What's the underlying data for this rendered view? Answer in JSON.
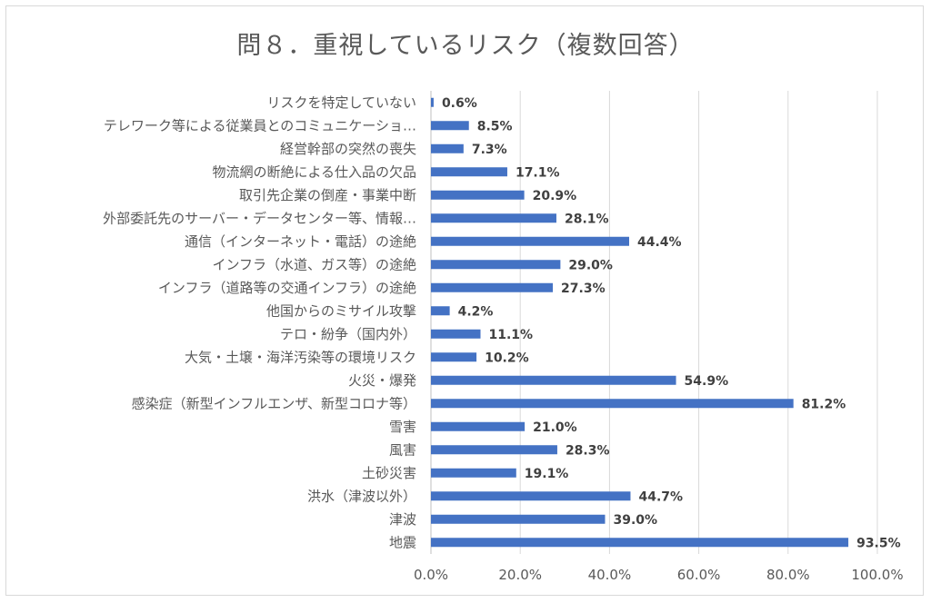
{
  "chart_data": {
    "type": "bar",
    "orientation": "horizontal",
    "title": "問８．重視しているリスク（複数回答）",
    "xlabel": "",
    "ylabel": "",
    "xlim": [
      0,
      100
    ],
    "x_tick_labels": [
      "0.0%",
      "20.0%",
      "40.0%",
      "60.0%",
      "80.0%",
      "100.0%"
    ],
    "x_ticks": [
      0,
      20,
      40,
      60,
      80,
      100
    ],
    "grid": true,
    "bar_color": "#4472c4",
    "categories": [
      "リスクを特定していない",
      "テレワーク等による従業員とのコミュニケーショ…",
      "経営幹部の突然の喪失",
      "物流網の断絶による仕入品の欠品",
      "取引先企業の倒産・事業中断",
      "外部委託先のサーバー・データセンター等、情報…",
      "通信（インターネット・電話）の途絶",
      "インフラ（水道、ガス等）の途絶",
      "インフラ（道路等の交通インフラ）の途絶",
      "他国からのミサイル攻撃",
      "テロ・紛争（国内外）",
      "大気・土壌・海洋汚染等の環境リスク",
      "火災・爆発",
      "感染症（新型インフルエンザ、新型コロナ等）",
      "雪害",
      "風害",
      "土砂災害",
      "洪水（津波以外）",
      "津波",
      "地震"
    ],
    "values": [
      0.6,
      8.5,
      7.3,
      17.1,
      20.9,
      28.1,
      44.4,
      29.0,
      27.3,
      4.2,
      11.1,
      10.2,
      54.9,
      81.2,
      21.0,
      28.3,
      19.1,
      44.7,
      39.0,
      93.5
    ],
    "value_labels": [
      "0.6%",
      "8.5%",
      "7.3%",
      "17.1%",
      "20.9%",
      "28.1%",
      "44.4%",
      "29.0%",
      "27.3%",
      "4.2%",
      "11.1%",
      "10.2%",
      "54.9%",
      "81.2%",
      "21.0%",
      "28.3%",
      "19.1%",
      "44.7%",
      "39.0%",
      "93.5%"
    ]
  }
}
